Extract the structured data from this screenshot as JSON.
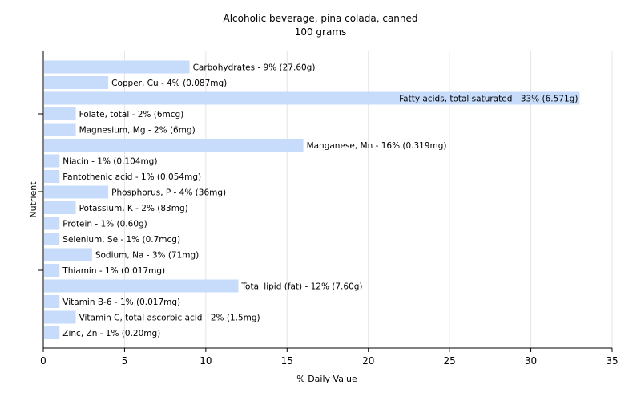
{
  "chart_data": {
    "type": "bar",
    "orientation": "horizontal",
    "title": "Alcoholic beverage, pina colada, canned",
    "subtitle": "100 grams",
    "xlabel": "% Daily Value",
    "ylabel": "Nutrient",
    "xlim": [
      0,
      35
    ],
    "xticks": [
      0,
      5,
      10,
      15,
      20,
      25,
      30,
      35
    ],
    "grid": true,
    "legend": "none",
    "bar_color": "#c6dcfa",
    "grid_color": "#e4e4e4",
    "categories": [
      "Carbohydrates",
      "Copper, Cu",
      "Fatty acids, total saturated",
      "Folate, total",
      "Magnesium, Mg",
      "Manganese, Mn",
      "Niacin",
      "Pantothenic acid",
      "Phosphorus, P",
      "Potassium, K",
      "Protein",
      "Selenium, Se",
      "Sodium, Na",
      "Thiamin",
      "Total lipid (fat)",
      "Vitamin B-6",
      "Vitamin C, total ascorbic acid",
      "Zinc, Zn"
    ],
    "values": [
      9,
      4,
      33,
      2,
      2,
      16,
      1,
      1,
      4,
      2,
      1,
      1,
      3,
      1,
      12,
      1,
      2,
      1
    ],
    "labels": [
      "Carbohydrates - 9% (27.60g)",
      "Copper, Cu - 4% (0.087mg)",
      "Fatty acids, total saturated - 33% (6.571g)",
      "Folate, total - 2% (6mcg)",
      "Magnesium, Mg - 2% (6mg)",
      "Manganese, Mn - 16% (0.319mg)",
      "Niacin - 1% (0.104mg)",
      "Pantothenic acid - 1% (0.054mg)",
      "Phosphorus, P - 4% (36mg)",
      "Potassium, K - 2% (83mg)",
      "Protein - 1% (0.60g)",
      "Selenium, Se - 1% (0.7mcg)",
      "Sodium, Na - 3% (71mg)",
      "Thiamin - 1% (0.017mg)",
      "Total lipid (fat) - 12% (7.60g)",
      "Vitamin B-6 - 1% (0.017mg)",
      "Vitamin C, total ascorbic acid - 2% (1.5mg)",
      "Zinc, Zn - 1% (0.20mg)"
    ]
  }
}
